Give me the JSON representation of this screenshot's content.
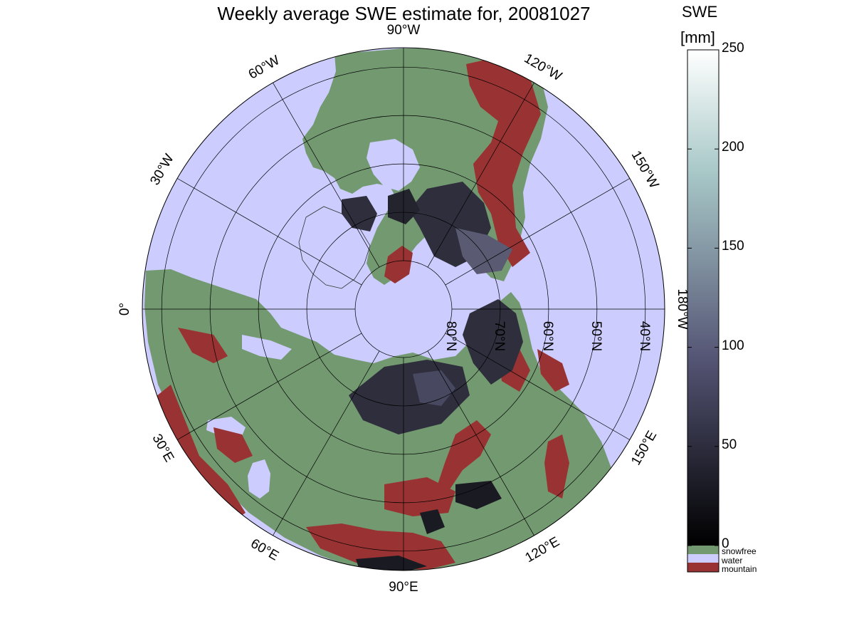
{
  "title": "Weekly average SWE estimate for, 20081027",
  "colorbar": {
    "label_line1": "SWE",
    "label_line2": "[mm]",
    "ticks": [
      "0",
      "50",
      "100",
      "150",
      "200",
      "250"
    ],
    "tick_values": [
      0,
      50,
      100,
      150,
      200,
      250
    ],
    "range": [
      0,
      250
    ],
    "colormap": "bone",
    "categories": [
      {
        "label": "snowfree",
        "color": "#739970"
      },
      {
        "label": "water",
        "color": "#ccccff"
      },
      {
        "label": "mountain",
        "color": "#993333"
      }
    ]
  },
  "map": {
    "projection": "north polar stereographic",
    "ocean_color": "#ccccff",
    "land_color": "#739970",
    "mountain_color": "#993333",
    "meridian_labels": [
      {
        "text": "90°W",
        "lon": 90
      },
      {
        "text": "120°W",
        "lon": 120
      },
      {
        "text": "150°W",
        "lon": 150
      },
      {
        "text": "180°W",
        "lon": 180
      },
      {
        "text": "150°E",
        "lon": 210
      },
      {
        "text": "120°E",
        "lon": 240
      },
      {
        "text": "90°E",
        "lon": 270
      },
      {
        "text": "60°E",
        "lon": 300
      },
      {
        "text": "30°E",
        "lon": 330
      },
      {
        "text": "0°",
        "lon": 0
      },
      {
        "text": "30°W",
        "lon": 30
      },
      {
        "text": "60°W",
        "lon": 60
      }
    ],
    "parallel_labels": [
      {
        "text": "80°N",
        "lat": 80
      },
      {
        "text": "70°N",
        "lat": 70
      },
      {
        "text": "60°N",
        "lat": 60
      },
      {
        "text": "50°N",
        "lat": 50
      },
      {
        "text": "40°N",
        "lat": 40
      }
    ]
  }
}
